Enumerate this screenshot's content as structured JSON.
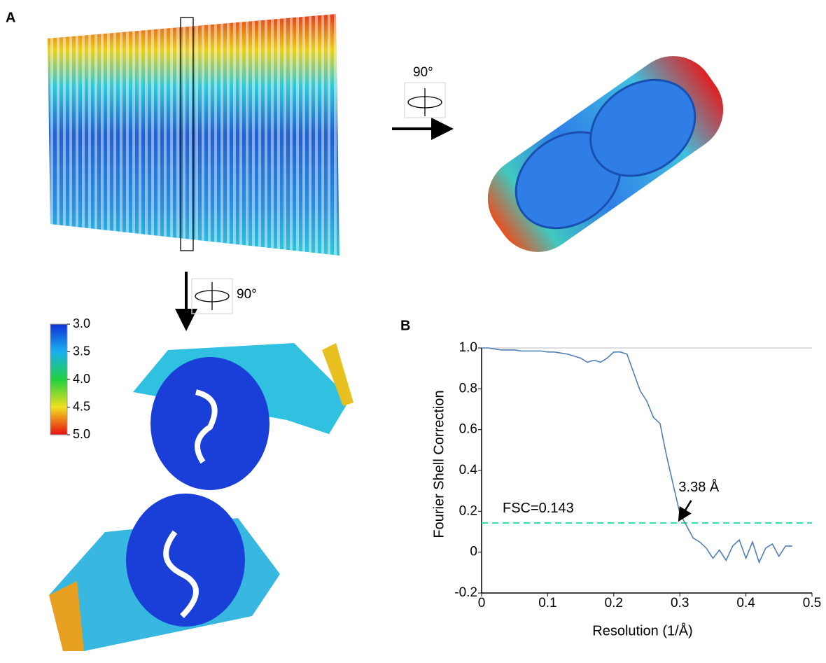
{
  "panel_labels": [
    "A",
    "B"
  ],
  "rotation_labels": [
    "90°",
    "90°"
  ],
  "colorbar": {
    "lim": [
      3,
      5
    ],
    "ticks": [
      {
        "value": 3,
        "label": "3.0"
      },
      {
        "value": 3.5,
        "label": "3.5"
      },
      {
        "value": 4,
        "label": "4.0"
      },
      {
        "value": 4.5,
        "label": "4.5"
      },
      {
        "value": 5,
        "label": "5.0"
      }
    ]
  },
  "chart_data": {
    "type": "line",
    "x_label": "Resolution (1/Å)",
    "y_label": "Fourier Shell Correction",
    "x": [
      0,
      0.01,
      0.02,
      0.03,
      0.04,
      0.05,
      0.06,
      0.07,
      0.08,
      0.09,
      0.1,
      0.11,
      0.12,
      0.13,
      0.14,
      0.15,
      0.16,
      0.17,
      0.18,
      0.19,
      0.2,
      0.21,
      0.22,
      0.23,
      0.24,
      0.25,
      0.26,
      0.27,
      0.28,
      0.29,
      0.3,
      0.31,
      0.32,
      0.33,
      0.34,
      0.35,
      0.36,
      0.37,
      0.38,
      0.39,
      0.4,
      0.41,
      0.42,
      0.43,
      0.44,
      0.45,
      0.46,
      0.47
    ],
    "series": [
      {
        "color": "#4f7fb5",
        "values": [
          1.0,
          1.0,
          0.995,
          0.99,
          0.99,
          0.99,
          0.985,
          0.985,
          0.985,
          0.985,
          0.98,
          0.98,
          0.975,
          0.97,
          0.96,
          0.95,
          0.93,
          0.94,
          0.93,
          0.95,
          0.98,
          0.98,
          0.97,
          0.88,
          0.79,
          0.74,
          0.66,
          0.63,
          0.47,
          0.33,
          0.19,
          0.13,
          0.07,
          0.05,
          0.02,
          -0.03,
          0.01,
          -0.04,
          0.03,
          0.06,
          -0.03,
          0.05,
          -0.05,
          0.02,
          0.04,
          -0.02,
          0.03,
          0.03
        ]
      }
    ],
    "threshold": {
      "value": 0.143,
      "label": "FSC=0.143",
      "color": "#33e0a8"
    },
    "annotation": {
      "text": "3.38 Å",
      "x": 0.296,
      "y": 0.143
    },
    "xlim": [
      0,
      0.5
    ],
    "xticks": [
      0,
      0.1,
      0.2,
      0.3,
      0.4,
      0.5
    ],
    "ylim": [
      -0.2,
      1.0
    ],
    "yticks": [
      -0.2,
      0,
      0.2,
      0.4,
      0.6,
      0.8,
      {
        "value": 1,
        "label": "1.0"
      }
    ]
  }
}
